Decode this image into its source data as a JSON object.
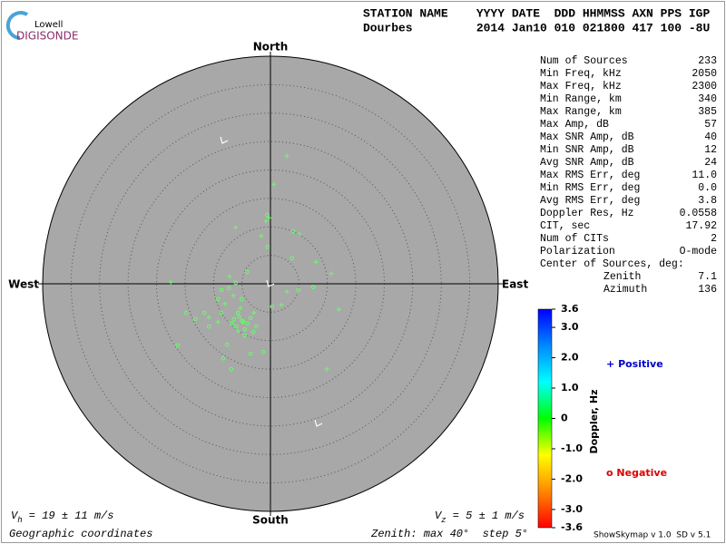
{
  "chart_data": {
    "type": "scatter",
    "logo": {
      "line1": "Lowell",
      "line2": "DIGISONDE"
    },
    "header": {
      "labels": "STATION NAME    YYYY DATE  DDD HHMMSS AXN PPS IGP",
      "values": "Dourbes         2014 Jan10 010 021800 417 100 -8U"
    },
    "directions": {
      "north": "North",
      "south": "South",
      "west": "West",
      "east": "East"
    },
    "stats": [
      [
        "Num of Sources",
        "233"
      ],
      [
        "Min Freq, kHz",
        "2050"
      ],
      [
        "Max Freq, kHz",
        "2300"
      ],
      [
        "Min Range, km",
        "340"
      ],
      [
        "Max Range, km",
        "385"
      ],
      [
        "Max Amp, dB",
        "57"
      ],
      [
        "Max SNR Amp, dB",
        "40"
      ],
      [
        "Min SNR Amp, dB",
        "12"
      ],
      [
        "Avg SNR Amp, dB",
        "24"
      ],
      [
        "Max RMS Err, deg",
        "11.0"
      ],
      [
        "Min RMS Err, deg",
        "0.0"
      ],
      [
        "Avg RMS Err, deg",
        "3.8"
      ],
      [
        "Doppler Res, Hz",
        "0.0558"
      ],
      [
        "CIT, sec",
        "17.92"
      ],
      [
        "Num of CITs",
        "2"
      ],
      [
        "Polarization",
        "O-mode"
      ]
    ],
    "center_label": "Center of Sources, deg:",
    "center": [
      [
        "Zenith",
        "7.1"
      ],
      [
        "Azimuth",
        "136"
      ]
    ],
    "vh": {
      "symbol": "V",
      "subscript": "h",
      "text": " = 19 ± 11 m/s"
    },
    "vz": {
      "symbol": "V",
      "subscript": "z",
      "text": " = 5 ± 1 m/s"
    },
    "coords_label": "Geographic coordinates",
    "zenith_label": [
      "Zenith: max ",
      40,
      "°  step ",
      5,
      "°"
    ],
    "software": "ShowSkymap v 1.0  SD v 5.1",
    "colorbar": {
      "label": "Doppler, Hz",
      "clim": [
        -3.6,
        3.6
      ],
      "colors": [
        "#ff0000",
        "#ff8800",
        "#ffff00",
        "#00ff00",
        "#00ffff",
        "#0088ff",
        "#0000ff"
      ],
      "ticks": [
        3.6,
        {
          "value": 3,
          "label": "3.0"
        },
        {
          "value": 2,
          "label": "2.0"
        },
        {
          "value": 1,
          "label": "1.0"
        },
        0,
        {
          "value": -1,
          "label": "-1.0"
        },
        {
          "value": -2,
          "label": "-2.0"
        },
        {
          "value": -3,
          "label": "-3.0"
        },
        -3.6
      ]
    },
    "series": [
      {
        "name": "Positive",
        "marker": "+",
        "color": "#0000cc",
        "point_color": "#66ff66",
        "x": [
          2.9,
          0.6,
          -0.2,
          -0.8,
          -6.1,
          -1.6,
          5.1,
          8.0,
          10.7,
          12.0,
          9.9,
          1.9,
          2.9,
          -7.2,
          -17.5,
          -6.5,
          -5.3,
          -2.9,
          -8.0,
          -9.2,
          -5.7,
          -10.8
        ],
        "values": [
          22.5,
          17.5,
          11.6,
          11.0,
          9.9,
          8.4,
          8.8,
          3.8,
          1.8,
          -4.5,
          -15.0,
          -3.7,
          -1.4,
          1.3,
          0.3,
          -2.1,
          -4.3,
          -5.1,
          -3.5,
          -6.7,
          -8.3,
          -5.9
        ]
      },
      {
        "name": "Negative",
        "marker": "o",
        "color": "#dd0000",
        "point_color": "#66ff66",
        "x": [
          -0.6,
          4.0,
          -0.5,
          3.8,
          4.9,
          7.5,
          0.3,
          -16.3,
          -6.9,
          -8.3,
          -1.3,
          -4.5,
          -7.6,
          -10.8,
          -11.6,
          -3.5,
          -2.5,
          -4.8,
          -6.4,
          -5.7,
          -8.6,
          -5.1,
          -7.3,
          -6.1,
          -4.1,
          -8.6,
          -9.2,
          -14.8,
          -13.2,
          -5.0,
          -4.0,
          -6.0,
          -3.5,
          -5.5,
          -4.5,
          -6.8,
          -3.0
        ],
        "values": [
          12.1,
          9.2,
          6.5,
          4.5,
          -1.1,
          -0.6,
          -4.0,
          -10.8,
          -15.0,
          -13.1,
          -12.0,
          -9.1,
          -10.7,
          -7.5,
          -5.1,
          -12.3,
          -7.5,
          -6.7,
          -6.2,
          -5.1,
          -5.1,
          -2.7,
          -0.8,
          0.2,
          2.1,
          -1.1,
          -2.7,
          -5.1,
          -6.2,
          -6.5,
          -7.0,
          -7.5,
          -6.0,
          -5.8,
          -8.0,
          -7.0,
          -8.5
        ]
      }
    ]
  }
}
